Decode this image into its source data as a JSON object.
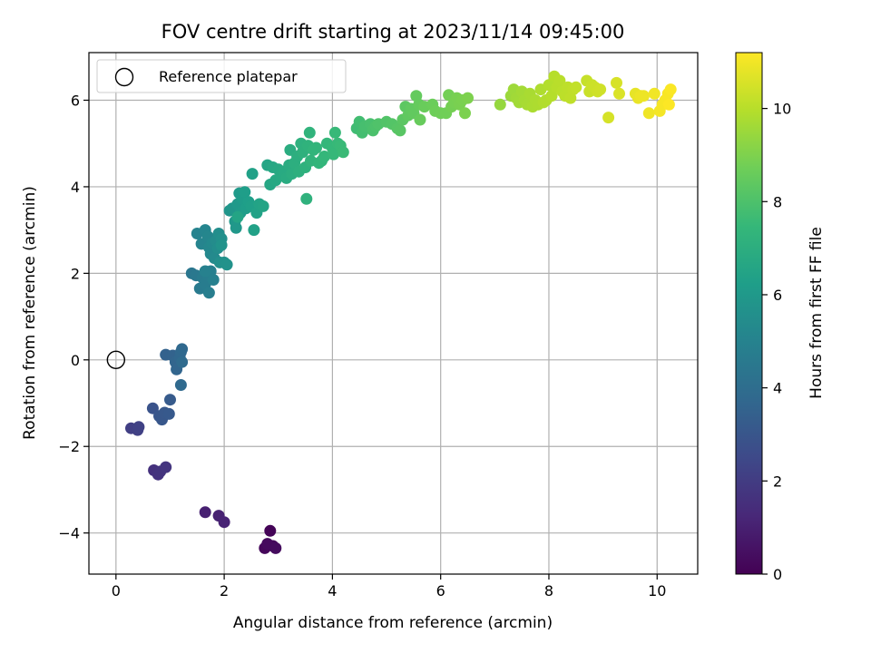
{
  "chart_data": {
    "type": "scatter",
    "title": "FOV centre drift starting at 2023/11/14 09:45:00",
    "xlabel": "Angular distance from reference (arcmin)",
    "ylabel": "Rotation from reference (arcmin)",
    "xlim": [
      -0.5,
      10.75
    ],
    "ylim": [
      -4.95,
      7.1
    ],
    "xticks": [
      0,
      2,
      4,
      6,
      8,
      10
    ],
    "yticks": [
      -4,
      -2,
      0,
      2,
      4,
      6
    ],
    "grid": true,
    "legend": {
      "placement": "top-left",
      "entries": [
        {
          "label": "Reference platepar",
          "marker": "open-circle"
        }
      ]
    },
    "reference_point": {
      "x": 0,
      "y": 0
    },
    "colorbar": {
      "label": "Hours from first FF file",
      "range": [
        0,
        11.2
      ],
      "ticks": [
        0,
        2,
        4,
        6,
        8,
        10
      ],
      "colormap": "viridis"
    },
    "colormap_stops": [
      "#440154",
      "#482878",
      "#3e4989",
      "#31688e",
      "#26828e",
      "#1f9e89",
      "#35b779",
      "#6ece58",
      "#b5de2b",
      "#fde725"
    ],
    "points": [
      [
        2.85,
        -3.95,
        0.1
      ],
      [
        2.75,
        -4.35,
        0.2
      ],
      [
        2.9,
        -4.3,
        0.25
      ],
      [
        2.8,
        -4.25,
        0.3
      ],
      [
        2.95,
        -4.35,
        0.35
      ],
      [
        1.65,
        -3.52,
        1.0
      ],
      [
        1.9,
        -3.6,
        1.05
      ],
      [
        2.0,
        -3.75,
        1.1
      ],
      [
        0.7,
        -2.55,
        1.6
      ],
      [
        0.78,
        -2.65,
        1.65
      ],
      [
        0.82,
        -2.58,
        1.7
      ],
      [
        0.92,
        -2.48,
        1.75
      ],
      [
        0.28,
        -1.58,
        2.1
      ],
      [
        0.4,
        -1.62,
        2.15
      ],
      [
        0.42,
        -1.55,
        2.2
      ],
      [
        0.68,
        -1.12,
        2.9
      ],
      [
        0.8,
        -1.3,
        3.0
      ],
      [
        0.85,
        -1.38,
        3.05
      ],
      [
        0.9,
        -1.22,
        3.1
      ],
      [
        0.98,
        -1.25,
        3.15
      ],
      [
        1.0,
        -0.92,
        3.2
      ],
      [
        0.92,
        0.12,
        3.5
      ],
      [
        1.05,
        0.1,
        3.55
      ],
      [
        1.1,
        -0.05,
        3.6
      ],
      [
        1.12,
        -0.22,
        3.65
      ],
      [
        1.18,
        0.05,
        3.7
      ],
      [
        1.2,
        0.18,
        3.75
      ],
      [
        1.22,
        0.25,
        3.8
      ],
      [
        1.2,
        -0.58,
        3.85
      ],
      [
        1.22,
        -0.05,
        3.9
      ],
      [
        1.4,
        2.0,
        4.4
      ],
      [
        1.48,
        1.95,
        4.5
      ],
      [
        1.55,
        1.65,
        4.6
      ],
      [
        1.6,
        1.9,
        4.65
      ],
      [
        1.65,
        1.75,
        4.7
      ],
      [
        1.7,
        1.95,
        4.75
      ],
      [
        1.72,
        1.55,
        4.8
      ],
      [
        1.75,
        2.05,
        4.85
      ],
      [
        1.8,
        1.85,
        4.9
      ],
      [
        1.65,
        2.05,
        4.92
      ],
      [
        1.5,
        2.92,
        5.0
      ],
      [
        1.58,
        2.68,
        5.05
      ],
      [
        1.65,
        3.0,
        5.1
      ],
      [
        1.7,
        2.85,
        5.15
      ],
      [
        1.72,
        2.6,
        5.2
      ],
      [
        1.75,
        2.45,
        5.25
      ],
      [
        1.78,
        2.7,
        5.3
      ],
      [
        1.82,
        2.35,
        5.35
      ],
      [
        1.85,
        2.75,
        5.4
      ],
      [
        1.88,
        2.58,
        5.45
      ],
      [
        1.9,
        2.92,
        5.5
      ],
      [
        1.92,
        2.25,
        5.55
      ],
      [
        1.95,
        2.8,
        5.6
      ],
      [
        2.0,
        2.25,
        5.65
      ],
      [
        2.05,
        2.2,
        5.7
      ],
      [
        1.95,
        2.65,
        5.72
      ],
      [
        2.1,
        3.45,
        5.8
      ],
      [
        2.15,
        3.5,
        5.85
      ],
      [
        2.2,
        3.2,
        5.9
      ],
      [
        2.22,
        3.05,
        5.95
      ],
      [
        2.25,
        3.6,
        6.0
      ],
      [
        2.28,
        3.85,
        6.05
      ],
      [
        2.3,
        3.4,
        6.1
      ],
      [
        2.35,
        3.7,
        6.15
      ],
      [
        2.38,
        3.88,
        6.2
      ],
      [
        2.4,
        3.5,
        6.22
      ],
      [
        2.45,
        3.65,
        6.25
      ],
      [
        2.5,
        3.55,
        6.3
      ],
      [
        2.52,
        4.3,
        6.35
      ],
      [
        2.55,
        3.0,
        6.38
      ],
      [
        2.6,
        3.4,
        6.4
      ],
      [
        2.65,
        3.6,
        6.45
      ],
      [
        2.72,
        3.55,
        6.5
      ],
      [
        2.25,
        3.3,
        6.52
      ],
      [
        2.8,
        4.5,
        6.55
      ],
      [
        2.85,
        4.05,
        6.6
      ],
      [
        2.9,
        4.45,
        6.65
      ],
      [
        2.95,
        4.15,
        6.7
      ],
      [
        3.0,
        4.4,
        6.72
      ],
      [
        3.05,
        4.25,
        6.75
      ],
      [
        3.1,
        4.35,
        6.8
      ],
      [
        3.15,
        4.2,
        6.85
      ],
      [
        3.2,
        4.5,
        6.88
      ],
      [
        3.22,
        4.85,
        6.9
      ],
      [
        3.25,
        4.3,
        6.95
      ],
      [
        3.3,
        4.55,
        7.0
      ],
      [
        3.35,
        4.7,
        7.02
      ],
      [
        3.38,
        4.35,
        7.05
      ],
      [
        3.42,
        5.0,
        7.1
      ],
      [
        3.45,
        4.8,
        7.12
      ],
      [
        3.5,
        4.45,
        7.15
      ],
      [
        3.52,
        3.72,
        7.18
      ],
      [
        3.55,
        4.95,
        7.2
      ],
      [
        3.58,
        5.25,
        7.25
      ],
      [
        3.6,
        4.6,
        7.28
      ],
      [
        3.65,
        4.85,
        7.3
      ],
      [
        3.7,
        4.9,
        7.32
      ],
      [
        3.75,
        4.55,
        7.35
      ],
      [
        3.8,
        4.6,
        7.38
      ],
      [
        3.85,
        4.7,
        7.4
      ],
      [
        3.9,
        5.0,
        7.42
      ],
      [
        4.0,
        4.9,
        7.45
      ],
      [
        4.02,
        4.75,
        7.48
      ],
      [
        4.05,
        5.25,
        7.5
      ],
      [
        4.1,
        5.0,
        7.52
      ],
      [
        4.15,
        4.95,
        7.55
      ],
      [
        4.2,
        4.8,
        7.58
      ],
      [
        4.45,
        5.35,
        7.7
      ],
      [
        4.5,
        5.5,
        7.75
      ],
      [
        4.55,
        5.25,
        7.8
      ],
      [
        4.6,
        5.4,
        7.85
      ],
      [
        4.7,
        5.45,
        7.9
      ],
      [
        4.75,
        5.3,
        7.95
      ],
      [
        4.8,
        5.4,
        8.0
      ],
      [
        4.85,
        5.45,
        8.05
      ],
      [
        5.0,
        5.5,
        8.1
      ],
      [
        5.1,
        5.45,
        8.15
      ],
      [
        5.2,
        5.35,
        8.2
      ],
      [
        5.25,
        5.3,
        8.25
      ],
      [
        5.3,
        5.55,
        8.3
      ],
      [
        5.35,
        5.85,
        8.35
      ],
      [
        5.4,
        5.65,
        8.4
      ],
      [
        5.45,
        5.8,
        8.42
      ],
      [
        5.5,
        5.7,
        8.45
      ],
      [
        5.55,
        6.1,
        8.5
      ],
      [
        5.6,
        5.9,
        8.52
      ],
      [
        5.62,
        5.55,
        8.55
      ],
      [
        5.7,
        5.85,
        8.6
      ],
      [
        5.85,
        5.9,
        8.65
      ],
      [
        5.9,
        5.75,
        8.7
      ],
      [
        6.0,
        5.7,
        8.72
      ],
      [
        6.1,
        5.7,
        8.75
      ],
      [
        6.15,
        6.12,
        8.8
      ],
      [
        6.2,
        5.85,
        8.82
      ],
      [
        6.25,
        5.95,
        8.85
      ],
      [
        6.3,
        6.05,
        8.88
      ],
      [
        6.35,
        5.9,
        8.9
      ],
      [
        6.4,
        6.0,
        8.92
      ],
      [
        6.45,
        5.7,
        8.95
      ],
      [
        6.5,
        6.05,
        8.98
      ],
      [
        7.1,
        5.9,
        9.4
      ],
      [
        7.3,
        6.1,
        9.5
      ],
      [
        7.35,
        6.25,
        9.55
      ],
      [
        7.4,
        6.05,
        9.6
      ],
      [
        7.45,
        5.95,
        9.62
      ],
      [
        7.5,
        6.2,
        9.65
      ],
      [
        7.55,
        6.0,
        9.7
      ],
      [
        7.6,
        5.9,
        9.72
      ],
      [
        7.65,
        6.15,
        9.75
      ],
      [
        7.7,
        5.85,
        9.78
      ],
      [
        7.75,
        6.0,
        9.8
      ],
      [
        7.8,
        5.9,
        9.82
      ],
      [
        7.85,
        6.25,
        9.85
      ],
      [
        7.9,
        5.95,
        9.88
      ],
      [
        7.95,
        6.0,
        9.9
      ],
      [
        8.0,
        6.35,
        9.92
      ],
      [
        8.05,
        6.1,
        9.95
      ],
      [
        8.1,
        6.55,
        9.98
      ],
      [
        8.15,
        6.3,
        10.0
      ],
      [
        8.2,
        6.45,
        10.02
      ],
      [
        8.25,
        6.2,
        10.05
      ],
      [
        8.3,
        6.1,
        10.08
      ],
      [
        8.35,
        6.3,
        10.1
      ],
      [
        8.4,
        6.05,
        10.12
      ],
      [
        8.45,
        6.25,
        10.15
      ],
      [
        8.5,
        6.3,
        10.18
      ],
      [
        8.7,
        6.45,
        10.25
      ],
      [
        8.75,
        6.2,
        10.3
      ],
      [
        8.8,
        6.35,
        10.32
      ],
      [
        8.85,
        6.3,
        10.35
      ],
      [
        8.9,
        6.2,
        10.38
      ],
      [
        8.95,
        6.25,
        10.4
      ],
      [
        9.1,
        5.6,
        10.5
      ],
      [
        9.25,
        6.4,
        10.55
      ],
      [
        9.3,
        6.15,
        10.6
      ],
      [
        9.6,
        6.15,
        10.8
      ],
      [
        9.65,
        6.05,
        10.85
      ],
      [
        9.7,
        6.1,
        10.9
      ],
      [
        9.75,
        6.1,
        10.92
      ],
      [
        9.85,
        5.7,
        10.95
      ],
      [
        9.95,
        6.15,
        11.0
      ],
      [
        10.05,
        5.75,
        11.05
      ],
      [
        10.1,
        5.9,
        11.08
      ],
      [
        10.15,
        6.0,
        11.1
      ],
      [
        10.2,
        6.15,
        11.12
      ],
      [
        10.25,
        6.25,
        11.15
      ],
      [
        10.22,
        5.9,
        11.18
      ]
    ]
  }
}
